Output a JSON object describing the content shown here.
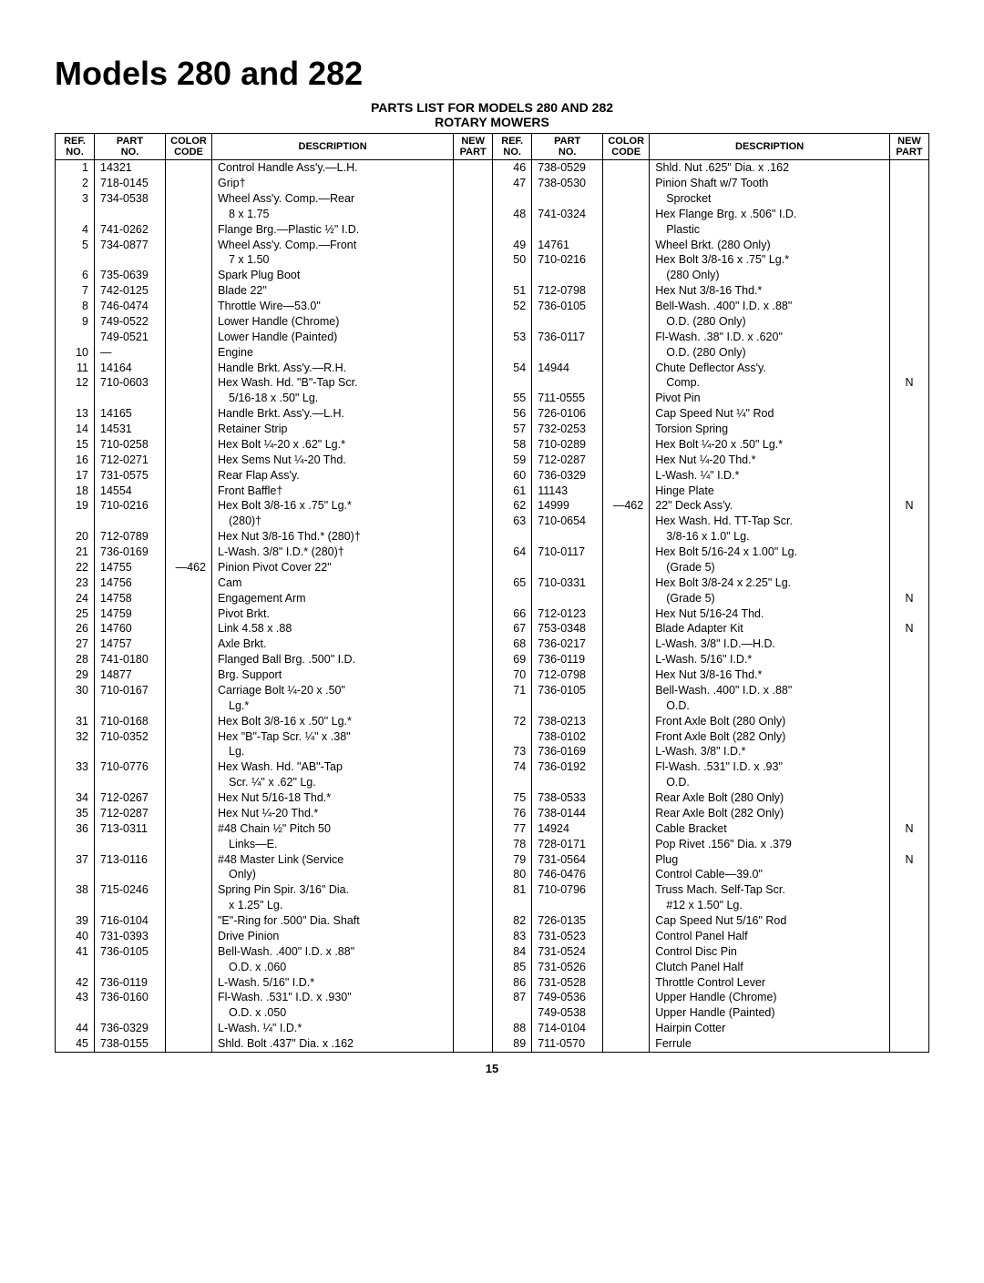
{
  "title": "Models 280 and 282",
  "subtitle": "PARTS LIST FOR MODELS 280 AND 282",
  "subtitle2": "ROTARY MOWERS",
  "pageNumber": "15",
  "headers": {
    "ref": "REF.\nNO.",
    "part": "PART\nNO.",
    "color": "COLOR\nCODE",
    "desc": "DESCRIPTION",
    "newp": "NEW\nPART"
  },
  "left": [
    {
      "r": "1",
      "p": "14321",
      "c": "",
      "d": "Control Handle Ass'y.—L.H.",
      "n": ""
    },
    {
      "r": "2",
      "p": "718-0145",
      "c": "",
      "d": "Grip†",
      "n": ""
    },
    {
      "r": "3",
      "p": "734-0538",
      "c": "",
      "d": "Wheel Ass'y. Comp.—Rear",
      "n": ""
    },
    {
      "r": "",
      "p": "",
      "c": "",
      "d": "  8 x 1.75",
      "n": ""
    },
    {
      "r": "4",
      "p": "741-0262",
      "c": "",
      "d": "Flange Brg.—Plastic ½\" I.D.",
      "n": ""
    },
    {
      "r": "5",
      "p": "734-0877",
      "c": "",
      "d": "Wheel Ass'y. Comp.—Front",
      "n": ""
    },
    {
      "r": "",
      "p": "",
      "c": "",
      "d": "  7 x 1.50",
      "n": ""
    },
    {
      "r": "6",
      "p": "735-0639",
      "c": "",
      "d": "Spark Plug Boot",
      "n": ""
    },
    {
      "r": "7",
      "p": "742-0125",
      "c": "",
      "d": "Blade 22\"",
      "n": ""
    },
    {
      "r": "8",
      "p": "746-0474",
      "c": "",
      "d": "Throttle Wire—53.0\"",
      "n": ""
    },
    {
      "r": "9",
      "p": "749-0522",
      "c": "",
      "d": "Lower Handle (Chrome)",
      "n": ""
    },
    {
      "r": "",
      "p": "749-0521",
      "c": "",
      "d": "Lower Handle (Painted)",
      "n": ""
    },
    {
      "r": "10",
      "p": "—",
      "c": "",
      "d": "Engine",
      "n": ""
    },
    {
      "r": "11",
      "p": "14164",
      "c": "",
      "d": "Handle Brkt. Ass'y.—R.H.",
      "n": ""
    },
    {
      "r": "12",
      "p": "710-0603",
      "c": "",
      "d": "Hex Wash. Hd. \"B\"-Tap Scr.",
      "n": ""
    },
    {
      "r": "",
      "p": "",
      "c": "",
      "d": "  5/16-18 x .50\" Lg.",
      "n": ""
    },
    {
      "r": "13",
      "p": "14165",
      "c": "",
      "d": "Handle Brkt. Ass'y.—L.H.",
      "n": ""
    },
    {
      "r": "14",
      "p": "14531",
      "c": "",
      "d": "Retainer Strip",
      "n": ""
    },
    {
      "r": "15",
      "p": "710-0258",
      "c": "",
      "d": "Hex Bolt ¼-20 x .62\" Lg.*",
      "n": ""
    },
    {
      "r": "16",
      "p": "712-0271",
      "c": "",
      "d": "Hex Sems Nut ¼-20 Thd.",
      "n": ""
    },
    {
      "r": "17",
      "p": "731-0575",
      "c": "",
      "d": "Rear Flap Ass'y.",
      "n": ""
    },
    {
      "r": "18",
      "p": "14554",
      "c": "",
      "d": "Front Baffle†",
      "n": ""
    },
    {
      "r": "19",
      "p": "710-0216",
      "c": "",
      "d": "Hex Bolt 3/8-16 x .75\" Lg.*",
      "n": ""
    },
    {
      "r": "",
      "p": "",
      "c": "",
      "d": "  (280)†",
      "n": ""
    },
    {
      "r": "20",
      "p": "712-0789",
      "c": "",
      "d": "Hex Nut 3/8-16 Thd.* (280)†",
      "n": ""
    },
    {
      "r": "21",
      "p": "736-0169",
      "c": "",
      "d": "L-Wash. 3/8\" I.D.* (280)†",
      "n": ""
    },
    {
      "r": "22",
      "p": "14755",
      "c": "—462",
      "d": "Pinion Pivot Cover 22\"",
      "n": ""
    },
    {
      "r": "23",
      "p": "14756",
      "c": "",
      "d": "Cam",
      "n": ""
    },
    {
      "r": "24",
      "p": "14758",
      "c": "",
      "d": "Engagement Arm",
      "n": ""
    },
    {
      "r": "25",
      "p": "14759",
      "c": "",
      "d": "Pivot Brkt.",
      "n": ""
    },
    {
      "r": "26",
      "p": "14760",
      "c": "",
      "d": "Link 4.58 x .88",
      "n": ""
    },
    {
      "r": "27",
      "p": "14757",
      "c": "",
      "d": "Axle Brkt.",
      "n": ""
    },
    {
      "r": "28",
      "p": "741-0180",
      "c": "",
      "d": "Flanged Ball Brg. .500\" I.D.",
      "n": ""
    },
    {
      "r": "29",
      "p": "14877",
      "c": "",
      "d": "Brg. Support",
      "n": ""
    },
    {
      "r": "30",
      "p": "710-0167",
      "c": "",
      "d": "Carriage Bolt ¼-20 x .50\"",
      "n": ""
    },
    {
      "r": "",
      "p": "",
      "c": "",
      "d": "  Lg.*",
      "n": ""
    },
    {
      "r": "31",
      "p": "710-0168",
      "c": "",
      "d": "Hex Bolt 3/8-16 x .50\" Lg.*",
      "n": ""
    },
    {
      "r": "32",
      "p": "710-0352",
      "c": "",
      "d": "Hex \"B\"-Tap Scr. ¼\" x .38\"",
      "n": ""
    },
    {
      "r": "",
      "p": "",
      "c": "",
      "d": "  Lg.",
      "n": ""
    },
    {
      "r": "33",
      "p": "710-0776",
      "c": "",
      "d": "Hex Wash. Hd. \"AB\"-Tap",
      "n": ""
    },
    {
      "r": "",
      "p": "",
      "c": "",
      "d": "  Scr. ¼\" x .62\" Lg.",
      "n": ""
    },
    {
      "r": "34",
      "p": "712-0267",
      "c": "",
      "d": "Hex Nut 5/16-18 Thd.*",
      "n": ""
    },
    {
      "r": "35",
      "p": "712-0287",
      "c": "",
      "d": "Hex Nut ¼-20 Thd.*",
      "n": ""
    },
    {
      "r": "36",
      "p": "713-0311",
      "c": "",
      "d": "#48 Chain ½\" Pitch 50",
      "n": ""
    },
    {
      "r": "",
      "p": "",
      "c": "",
      "d": "  Links—E.",
      "n": ""
    },
    {
      "r": "37",
      "p": "713-0116",
      "c": "",
      "d": "#48 Master Link (Service",
      "n": ""
    },
    {
      "r": "",
      "p": "",
      "c": "",
      "d": "  Only)",
      "n": ""
    },
    {
      "r": "38",
      "p": "715-0246",
      "c": "",
      "d": "Spring Pin Spir. 3/16\" Dia.",
      "n": ""
    },
    {
      "r": "",
      "p": "",
      "c": "",
      "d": "  x 1.25\" Lg.",
      "n": ""
    },
    {
      "r": "39",
      "p": "716-0104",
      "c": "",
      "d": "\"E\"-Ring for .500\" Dia. Shaft",
      "n": ""
    },
    {
      "r": "40",
      "p": "731-0393",
      "c": "",
      "d": "Drive Pinion",
      "n": ""
    },
    {
      "r": "41",
      "p": "736-0105",
      "c": "",
      "d": "Bell-Wash. .400\" I.D. x .88\"",
      "n": ""
    },
    {
      "r": "",
      "p": "",
      "c": "",
      "d": "  O.D. x .060",
      "n": ""
    },
    {
      "r": "42",
      "p": "736-0119",
      "c": "",
      "d": "L-Wash. 5/16\" I.D.*",
      "n": ""
    },
    {
      "r": "43",
      "p": "736-0160",
      "c": "",
      "d": "Fl-Wash. .531\" I.D. x .930\"",
      "n": ""
    },
    {
      "r": "",
      "p": "",
      "c": "",
      "d": "  O.D. x .050",
      "n": ""
    },
    {
      "r": "44",
      "p": "736-0329",
      "c": "",
      "d": "L-Wash. ¼\" I.D.*",
      "n": ""
    },
    {
      "r": "45",
      "p": "738-0155",
      "c": "",
      "d": "Shld. Bolt .437\" Dia. x .162",
      "n": ""
    }
  ],
  "right": [
    {
      "r": "46",
      "p": "738-0529",
      "c": "",
      "d": "Shld. Nut .625\" Dia. x .162",
      "n": ""
    },
    {
      "r": "47",
      "p": "738-0530",
      "c": "",
      "d": "Pinion Shaft w/7 Tooth",
      "n": ""
    },
    {
      "r": "",
      "p": "",
      "c": "",
      "d": "  Sprocket",
      "n": ""
    },
    {
      "r": "48",
      "p": "741-0324",
      "c": "",
      "d": "Hex Flange Brg. x .506\" I.D.",
      "n": ""
    },
    {
      "r": "",
      "p": "",
      "c": "",
      "d": "  Plastic",
      "n": ""
    },
    {
      "r": "49",
      "p": "14761",
      "c": "",
      "d": "Wheel Brkt. (280 Only)",
      "n": ""
    },
    {
      "r": "50",
      "p": "710-0216",
      "c": "",
      "d": "Hex Bolt 3/8-16 x .75\" Lg.*",
      "n": ""
    },
    {
      "r": "",
      "p": "",
      "c": "",
      "d": "  (280 Only)",
      "n": ""
    },
    {
      "r": "51",
      "p": "712-0798",
      "c": "",
      "d": "Hex Nut 3/8-16 Thd.*",
      "n": ""
    },
    {
      "r": "52",
      "p": "736-0105",
      "c": "",
      "d": "Bell-Wash. .400\" I.D. x .88\"",
      "n": ""
    },
    {
      "r": "",
      "p": "",
      "c": "",
      "d": "  O.D. (280 Only)",
      "n": ""
    },
    {
      "r": "53",
      "p": "736-0117",
      "c": "",
      "d": "Fl-Wash. .38\" I.D. x .620\"",
      "n": ""
    },
    {
      "r": "",
      "p": "",
      "c": "",
      "d": "  O.D. (280 Only)",
      "n": ""
    },
    {
      "r": "54",
      "p": "14944",
      "c": "",
      "d": "Chute Deflector Ass'y.",
      "n": ""
    },
    {
      "r": "",
      "p": "",
      "c": "",
      "d": "  Comp.",
      "n": "N"
    },
    {
      "r": "55",
      "p": "711-0555",
      "c": "",
      "d": "Pivot Pin",
      "n": ""
    },
    {
      "r": "56",
      "p": "726-0106",
      "c": "",
      "d": "Cap Speed Nut ¼\" Rod",
      "n": ""
    },
    {
      "r": "57",
      "p": "732-0253",
      "c": "",
      "d": "Torsion Spring",
      "n": ""
    },
    {
      "r": "58",
      "p": "710-0289",
      "c": "",
      "d": "Hex Bolt ¼-20 x .50\" Lg.*",
      "n": ""
    },
    {
      "r": "59",
      "p": "712-0287",
      "c": "",
      "d": "Hex Nut ¼-20 Thd.*",
      "n": ""
    },
    {
      "r": "60",
      "p": "736-0329",
      "c": "",
      "d": "L-Wash. ¼\" I.D.*",
      "n": ""
    },
    {
      "r": "61",
      "p": "11143",
      "c": "",
      "d": "Hinge Plate",
      "n": ""
    },
    {
      "r": "62",
      "p": "14999",
      "c": "—462",
      "d": "22\" Deck Ass'y.",
      "n": "N"
    },
    {
      "r": "63",
      "p": "710-0654",
      "c": "",
      "d": "Hex Wash. Hd. TT-Tap Scr.",
      "n": ""
    },
    {
      "r": "",
      "p": "",
      "c": "",
      "d": "  3/8-16 x 1.0\" Lg.",
      "n": ""
    },
    {
      "r": "64",
      "p": "710-0117",
      "c": "",
      "d": "Hex Bolt 5/16-24 x 1.00\" Lg.",
      "n": ""
    },
    {
      "r": "",
      "p": "",
      "c": "",
      "d": "  (Grade 5)",
      "n": ""
    },
    {
      "r": "65",
      "p": "710-0331",
      "c": "",
      "d": "Hex Bolt 3/8-24 x 2.25\" Lg.",
      "n": ""
    },
    {
      "r": "",
      "p": "",
      "c": "",
      "d": "  (Grade 5)",
      "n": "N"
    },
    {
      "r": "66",
      "p": "712-0123",
      "c": "",
      "d": "Hex Nut 5/16-24 Thd.",
      "n": ""
    },
    {
      "r": "67",
      "p": "753-0348",
      "c": "",
      "d": "Blade Adapter Kit",
      "n": "N"
    },
    {
      "r": "68",
      "p": "736-0217",
      "c": "",
      "d": "L-Wash. 3/8\" I.D.—H.D.",
      "n": ""
    },
    {
      "r": "69",
      "p": "736-0119",
      "c": "",
      "d": "L-Wash. 5/16\" I.D.*",
      "n": ""
    },
    {
      "r": "70",
      "p": "712-0798",
      "c": "",
      "d": "Hex Nut 3/8-16 Thd.*",
      "n": ""
    },
    {
      "r": "71",
      "p": "736-0105",
      "c": "",
      "d": "Bell-Wash. .400\" I.D. x .88\"",
      "n": ""
    },
    {
      "r": "",
      "p": "",
      "c": "",
      "d": "  O.D.",
      "n": ""
    },
    {
      "r": "72",
      "p": "738-0213",
      "c": "",
      "d": "Front Axle Bolt (280 Only)",
      "n": ""
    },
    {
      "r": "",
      "p": "738-0102",
      "c": "",
      "d": "Front Axle Bolt (282 Only)",
      "n": ""
    },
    {
      "r": "73",
      "p": "736-0169",
      "c": "",
      "d": "L-Wash. 3/8\" I.D.*",
      "n": ""
    },
    {
      "r": "74",
      "p": "736-0192",
      "c": "",
      "d": "Fl-Wash. .531\" I.D. x .93\"",
      "n": ""
    },
    {
      "r": "",
      "p": "",
      "c": "",
      "d": "  O.D.",
      "n": ""
    },
    {
      "r": "75",
      "p": "738-0533",
      "c": "",
      "d": "Rear Axle Bolt (280 Only)",
      "n": ""
    },
    {
      "r": "76",
      "p": "738-0144",
      "c": "",
      "d": "Rear Axle Bolt (282 Only)",
      "n": ""
    },
    {
      "r": "77",
      "p": "14924",
      "c": "",
      "d": "Cable Bracket",
      "n": "N"
    },
    {
      "r": "78",
      "p": "728-0171",
      "c": "",
      "d": "Pop Rivet .156\" Dia. x .379",
      "n": ""
    },
    {
      "r": "79",
      "p": "731-0564",
      "c": "",
      "d": "Plug",
      "n": "N"
    },
    {
      "r": "80",
      "p": "746-0476",
      "c": "",
      "d": "Control Cable—39.0\"",
      "n": ""
    },
    {
      "r": "81",
      "p": "710-0796",
      "c": "",
      "d": "Truss Mach. Self-Tap Scr.",
      "n": ""
    },
    {
      "r": "",
      "p": "",
      "c": "",
      "d": "  #12 x 1.50\" Lg.",
      "n": ""
    },
    {
      "r": "82",
      "p": "726-0135",
      "c": "",
      "d": "Cap Speed Nut 5/16\" Rod",
      "n": ""
    },
    {
      "r": "83",
      "p": "731-0523",
      "c": "",
      "d": "Control Panel Half",
      "n": ""
    },
    {
      "r": "84",
      "p": "731-0524",
      "c": "",
      "d": "Control Disc Pin",
      "n": ""
    },
    {
      "r": "85",
      "p": "731-0526",
      "c": "",
      "d": "Clutch Panel Half",
      "n": ""
    },
    {
      "r": "86",
      "p": "731-0528",
      "c": "",
      "d": "Throttle Control Lever",
      "n": ""
    },
    {
      "r": "87",
      "p": "749-0536",
      "c": "",
      "d": "Upper Handle (Chrome)",
      "n": ""
    },
    {
      "r": "",
      "p": "749-0538",
      "c": "",
      "d": "Upper Handle (Painted)",
      "n": ""
    },
    {
      "r": "88",
      "p": "714-0104",
      "c": "",
      "d": "Hairpin Cotter",
      "n": ""
    },
    {
      "r": "89",
      "p": "711-0570",
      "c": "",
      "d": "Ferrule",
      "n": ""
    }
  ]
}
